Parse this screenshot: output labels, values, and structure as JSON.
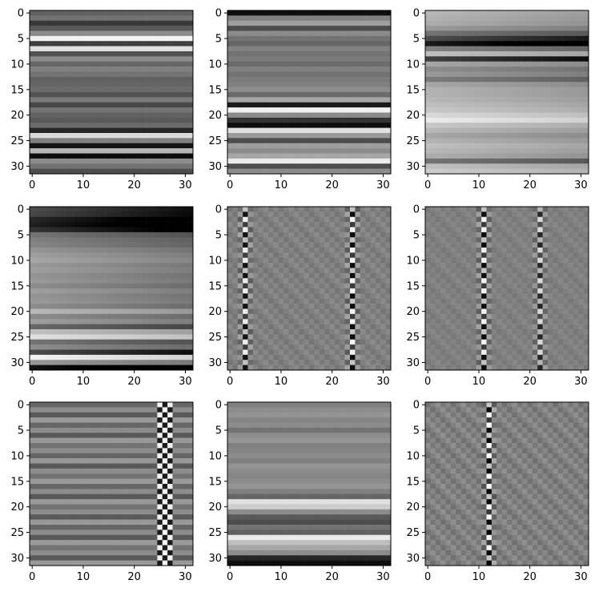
{
  "chart_data": {
    "type": "heatmap",
    "colormap": "gray",
    "grid": false,
    "layout": "3x3 grid of 32x32 images",
    "x_ticks": [
      "0",
      "10",
      "20",
      "30"
    ],
    "y_ticks": [
      "0",
      "5",
      "10",
      "15",
      "20",
      "25",
      "30"
    ],
    "xlim": [
      -0.5,
      31.5
    ],
    "ylim": [
      31.5,
      -0.5
    ],
    "panels": [
      {
        "name": "",
        "pattern": "horizontal-bands",
        "row_values": [
          0.38,
          0.45,
          0.22,
          0.35,
          0.55,
          0.95,
          0.25,
          0.88,
          0.32,
          0.55,
          0.4,
          0.5,
          0.45,
          0.38,
          0.4,
          0.42,
          0.32,
          0.48,
          0.28,
          0.45,
          0.38,
          0.35,
          0.42,
          0.15,
          0.85,
          0.5,
          0.08,
          0.72,
          0.05,
          0.55,
          0.45,
          0.3
        ],
        "gradient": 0.0
      },
      {
        "name": "",
        "pattern": "horizontal-bands",
        "row_values": [
          0.05,
          0.5,
          0.62,
          0.3,
          0.55,
          0.45,
          0.4,
          0.5,
          0.45,
          0.48,
          0.42,
          0.5,
          0.45,
          0.48,
          0.5,
          0.55,
          0.42,
          0.65,
          0.1,
          0.95,
          0.55,
          0.2,
          0.05,
          0.88,
          0.6,
          0.3,
          0.62,
          0.55,
          0.65,
          0.92,
          0.3,
          0.55
        ],
        "gradient": 0.0
      },
      {
        "name": "",
        "pattern": "horizontal-bands",
        "row_values": [
          0.72,
          0.7,
          0.68,
          0.6,
          0.45,
          0.3,
          0.1,
          0.5,
          0.75,
          0.25,
          0.65,
          0.55,
          0.6,
          0.48,
          0.65,
          0.7,
          0.7,
          0.72,
          0.75,
          0.78,
          0.85,
          0.92,
          0.78,
          0.72,
          0.65,
          0.7,
          0.75,
          0.72,
          0.68,
          0.45,
          0.75,
          0.8
        ],
        "gradient": -0.2
      },
      {
        "name": "",
        "pattern": "horizontal-bands",
        "row_values": [
          0.3,
          0.28,
          0.15,
          0.12,
          0.2,
          0.45,
          0.5,
          0.52,
          0.58,
          0.62,
          0.65,
          0.6,
          0.62,
          0.58,
          0.6,
          0.55,
          0.62,
          0.58,
          0.6,
          0.55,
          0.72,
          0.55,
          0.62,
          0.4,
          0.75,
          0.88,
          0.45,
          0.55,
          0.3,
          0.95,
          0.6,
          0.08
        ],
        "gradient": -0.25
      },
      {
        "name": "",
        "pattern": "vertical-spikes",
        "base": 0.5,
        "row_jitter": 0.04,
        "spike_columns": [
          3,
          24
        ],
        "spike_strength": [
          0.85,
          0.9
        ]
      },
      {
        "name": "",
        "pattern": "vertical-spikes",
        "base": 0.5,
        "row_jitter": 0.03,
        "spike_columns": [
          11,
          22
        ],
        "spike_strength": [
          0.9,
          0.7
        ]
      },
      {
        "name": "",
        "pattern": "bands-and-spikes",
        "row_values": [
          0.4,
          0.55,
          0.35,
          0.6,
          0.4,
          0.55,
          0.35,
          0.6,
          0.45,
          0.55,
          0.4,
          0.6,
          0.35,
          0.55,
          0.45,
          0.6,
          0.4,
          0.55,
          0.35,
          0.6,
          0.45,
          0.55,
          0.35,
          0.6,
          0.4,
          0.55,
          0.35,
          0.6,
          0.45,
          0.55,
          0.35,
          0.6
        ],
        "spike_columns": [
          25,
          26,
          27
        ],
        "spike_strength": [
          0.9,
          0.8,
          0.8
        ]
      },
      {
        "name": "",
        "pattern": "horizontal-bands",
        "row_values": [
          0.5,
          0.55,
          0.58,
          0.52,
          0.55,
          0.45,
          0.55,
          0.58,
          0.5,
          0.52,
          0.55,
          0.5,
          0.58,
          0.55,
          0.52,
          0.55,
          0.58,
          0.5,
          0.4,
          0.88,
          0.8,
          0.55,
          0.35,
          0.3,
          0.45,
          0.38,
          0.92,
          0.75,
          0.65,
          0.55,
          0.15,
          0.05
        ],
        "gradient": 0.0
      },
      {
        "name": "",
        "pattern": "vertical-spikes",
        "base": 0.5,
        "row_jitter": 0.06,
        "spike_columns": [
          12
        ],
        "spike_strength": [
          0.95
        ]
      }
    ]
  }
}
